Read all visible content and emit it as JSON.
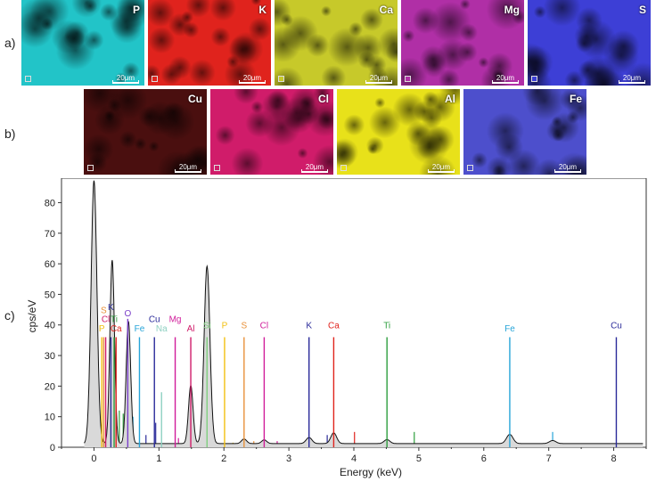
{
  "panel_labels": {
    "a": "a)",
    "b": "b)",
    "c": "c)"
  },
  "scale_label": "20μm",
  "maps_row_a": [
    {
      "element": "P",
      "color": "#22c4c8"
    },
    {
      "element": "K",
      "color": "#e0231d"
    },
    {
      "element": "Ca",
      "color": "#c7c92a"
    },
    {
      "element": "Mg",
      "color": "#b02fa6"
    },
    {
      "element": "S",
      "color": "#3d3fd6"
    }
  ],
  "maps_row_b": [
    {
      "element": "Cu",
      "color": "#4a0f0f"
    },
    {
      "element": "Cl",
      "color": "#d01c6a"
    },
    {
      "element": "Al",
      "color": "#e8e11a"
    },
    {
      "element": "Fe",
      "color": "#4d4fcc"
    }
  ],
  "chart_data": {
    "type": "line",
    "xlabel": "Energy (keV)",
    "ylabel": "cps/eV",
    "xlim": [
      -0.5,
      8.5
    ],
    "ylim": [
      0,
      88
    ],
    "xticks": [
      0,
      1,
      2,
      3,
      4,
      5,
      6,
      7,
      8
    ],
    "yticks": [
      0,
      10,
      20,
      30,
      40,
      50,
      60,
      70,
      80
    ],
    "spectrum": {
      "baseline": 1.2,
      "peaks": [
        {
          "e": 0.0,
          "h": 86,
          "w": 0.045
        },
        {
          "e": 0.28,
          "h": 60,
          "w": 0.035
        },
        {
          "e": 0.53,
          "h": 40,
          "w": 0.035
        },
        {
          "e": 1.49,
          "h": 19,
          "w": 0.035
        },
        {
          "e": 1.74,
          "h": 58,
          "w": 0.045
        },
        {
          "e": 2.31,
          "h": 1.5,
          "w": 0.04
        },
        {
          "e": 2.62,
          "h": 1.2,
          "w": 0.04
        },
        {
          "e": 3.31,
          "h": 2,
          "w": 0.045
        },
        {
          "e": 3.69,
          "h": 3.5,
          "w": 0.045
        },
        {
          "e": 4.51,
          "h": 1.3,
          "w": 0.045
        },
        {
          "e": 6.4,
          "h": 3,
          "w": 0.05
        },
        {
          "e": 7.06,
          "h": 1.0,
          "w": 0.05
        }
      ]
    },
    "element_lines": [
      {
        "label": "S",
        "e": 0.15,
        "height": 36,
        "label_y": 43,
        "color": "#e8913a"
      },
      {
        "label": "Cl",
        "e": 0.18,
        "height": 36,
        "label_y": 40,
        "color": "#d01c6a"
      },
      {
        "label": "P",
        "e": 0.12,
        "height": 36,
        "label_y": 37,
        "color": "#f2c011"
      },
      {
        "label": "K",
        "e": 0.26,
        "height": 36,
        "label_y": 44,
        "color": "#2b2b9a"
      },
      {
        "label": "Ti",
        "e": 0.31,
        "height": 36,
        "label_y": 40,
        "color": "#2e9e3e"
      },
      {
        "label": "Ca",
        "e": 0.34,
        "height": 36,
        "label_y": 37,
        "color": "#e0231d"
      },
      {
        "label": "O",
        "e": 0.52,
        "height": 42,
        "label_y": 42,
        "color": "#7a3fc9"
      },
      {
        "label": "Cu",
        "e": 0.93,
        "height": 36,
        "label_y": 40,
        "color": "#2b2b9a"
      },
      {
        "label": "Fe",
        "e": 0.7,
        "height": 36,
        "label_y": 37,
        "color": "#26a4d8"
      },
      {
        "label": "Na",
        "e": 1.04,
        "height": 18,
        "label_y": 37,
        "color": "#8fd1c2"
      },
      {
        "label": "Mg",
        "e": 1.25,
        "height": 36,
        "label_y": 40,
        "color": "#d01c9a"
      },
      {
        "label": "Al",
        "e": 1.49,
        "height": 36,
        "label_y": 37,
        "color": "#d01c6a"
      },
      {
        "label": "Si",
        "e": 1.74,
        "height": 36,
        "label_y": 38,
        "color": "#7fcf7f"
      },
      {
        "label": "P",
        "e": 2.01,
        "height": 36,
        "label_y": 38,
        "color": "#f2c011"
      },
      {
        "label": "S",
        "e": 2.31,
        "height": 36,
        "label_y": 38,
        "color": "#e8913a"
      },
      {
        "label": "Cl",
        "e": 2.62,
        "height": 36,
        "label_y": 38,
        "color": "#d01c9a"
      },
      {
        "label": "K",
        "e": 3.31,
        "height": 36,
        "label_y": 38,
        "color": "#2b2b9a"
      },
      {
        "label": "Ca",
        "e": 3.69,
        "height": 36,
        "label_y": 38,
        "color": "#e0231d"
      },
      {
        "label": "Ti",
        "e": 4.51,
        "height": 36,
        "label_y": 38,
        "color": "#2e9e3e"
      },
      {
        "label": "Fe",
        "e": 6.4,
        "height": 36,
        "label_y": 37,
        "color": "#26a4d8"
      },
      {
        "label": "Cu",
        "e": 8.04,
        "height": 36,
        "label_y": 38,
        "color": "#2b2b9a"
      }
    ],
    "minor_lines": [
      {
        "e": 0.39,
        "height": 12,
        "color": "#2e9e3e"
      },
      {
        "e": 0.45,
        "height": 11,
        "color": "#2e9e3e"
      },
      {
        "e": 0.6,
        "height": 10,
        "color": "#26a4d8"
      },
      {
        "e": 0.8,
        "height": 4,
        "color": "#2b2b9a"
      },
      {
        "e": 0.95,
        "height": 8,
        "color": "#2b2b9a"
      },
      {
        "e": 1.3,
        "height": 3,
        "color": "#d01c9a"
      },
      {
        "e": 1.55,
        "height": 2,
        "color": "#d01c6a"
      },
      {
        "e": 1.83,
        "height": 3,
        "color": "#7fcf7f"
      },
      {
        "e": 2.14,
        "height": 1.5,
        "color": "#f2c011"
      },
      {
        "e": 2.46,
        "height": 2,
        "color": "#e8913a"
      },
      {
        "e": 2.82,
        "height": 2,
        "color": "#d01c9a"
      },
      {
        "e": 3.59,
        "height": 4,
        "color": "#2b2b9a"
      },
      {
        "e": 4.01,
        "height": 5,
        "color": "#e0231d"
      },
      {
        "e": 4.93,
        "height": 5,
        "color": "#2e9e3e"
      },
      {
        "e": 7.06,
        "height": 5,
        "color": "#26a4d8"
      },
      {
        "e": 8.9,
        "height": 0,
        "color": "#2b2b9a"
      }
    ]
  }
}
